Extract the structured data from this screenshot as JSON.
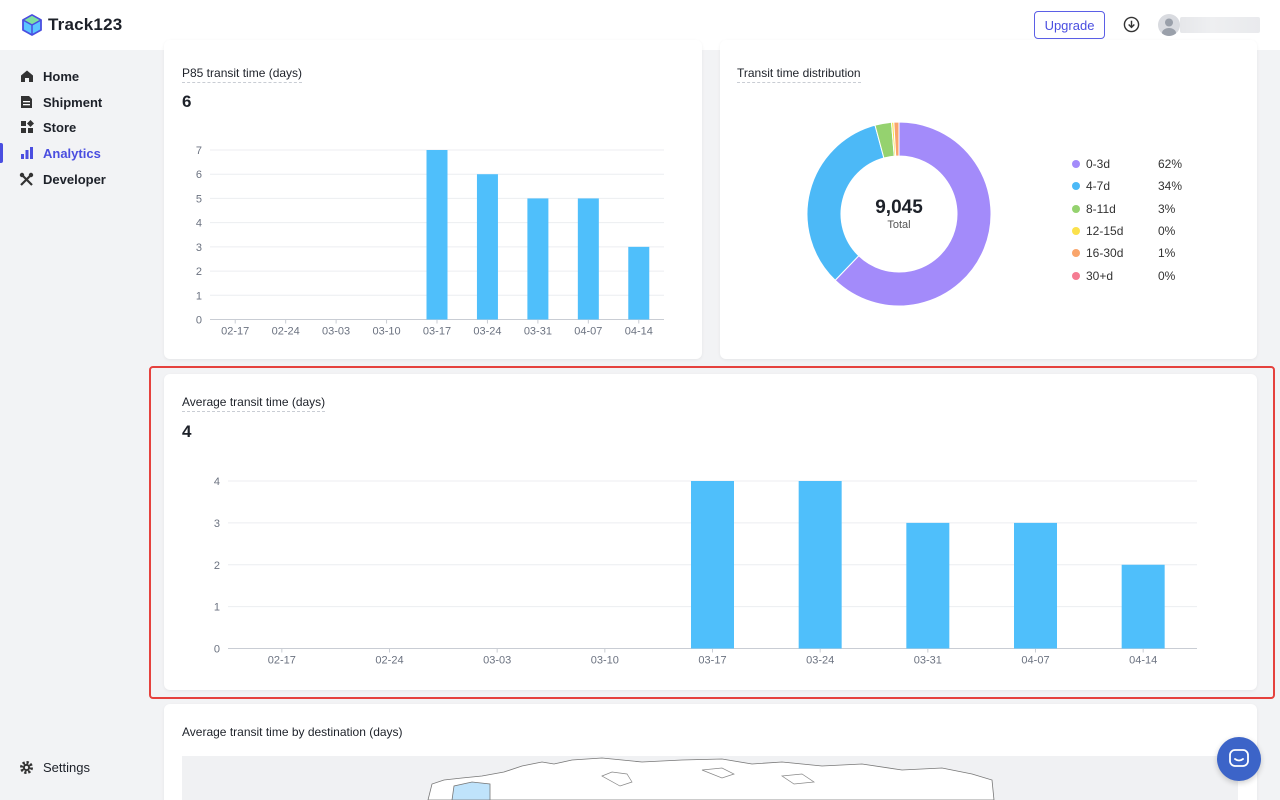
{
  "app": {
    "name": "Track123"
  },
  "header": {
    "upgrade_label": "Upgrade"
  },
  "sidebar": {
    "items": [
      {
        "label": "Home",
        "icon": "home-icon"
      },
      {
        "label": "Shipment",
        "icon": "document-icon"
      },
      {
        "label": "Store",
        "icon": "store-icon"
      },
      {
        "label": "Analytics",
        "icon": "bar-chart-icon",
        "active": true
      },
      {
        "label": "Developer",
        "icon": "tools-icon"
      }
    ],
    "settings_label": "Settings"
  },
  "cards": {
    "p85": {
      "title": "P85 transit time (days)",
      "value": "6"
    },
    "distribution": {
      "title": "Transit time distribution",
      "total_value": "9,045",
      "total_label": "Total"
    },
    "average": {
      "title": "Average transit time (days)",
      "value": "4"
    },
    "destination": {
      "title": "Average transit time by destination (days)"
    }
  },
  "legend": [
    {
      "label": "0-3d",
      "pct": "62%",
      "color": "#a38bfa"
    },
    {
      "label": "4-7d",
      "pct": "34%",
      "color": "#4cb9f7"
    },
    {
      "label": "8-11d",
      "pct": "3%",
      "color": "#95d26f"
    },
    {
      "label": "12-15d",
      "pct": "0%",
      "color": "#fbe14c"
    },
    {
      "label": "16-30d",
      "pct": "1%",
      "color": "#f9a56b"
    },
    {
      "label": "30+d",
      "pct": "0%",
      "color": "#f57c92"
    }
  ],
  "chart_data": [
    {
      "type": "bar",
      "title": "P85 transit time (days)",
      "categories": [
        "02-17",
        "02-24",
        "03-03",
        "03-10",
        "03-17",
        "03-24",
        "03-31",
        "04-07",
        "04-14"
      ],
      "values": [
        0,
        0,
        0,
        0,
        7,
        6,
        5,
        5,
        3
      ],
      "ylim": [
        0,
        7
      ],
      "yticks": [
        0,
        1,
        2,
        3,
        4,
        5,
        6,
        7
      ],
      "color": "#4fbffb"
    },
    {
      "type": "pie",
      "title": "Transit time distribution",
      "categories": [
        "0-3d",
        "4-7d",
        "8-11d",
        "12-15d",
        "16-30d",
        "30+d"
      ],
      "values": [
        62.2,
        33.6,
        2.9,
        0.4,
        0.9,
        0.0
      ],
      "colors": [
        "#a38bfa",
        "#4cb9f7",
        "#95d26f",
        "#fbe14c",
        "#f9a56b",
        "#f57c92"
      ]
    },
    {
      "type": "bar",
      "title": "Average transit time (days)",
      "categories": [
        "02-17",
        "02-24",
        "03-03",
        "03-10",
        "03-17",
        "03-24",
        "03-31",
        "04-07",
        "04-14"
      ],
      "values": [
        0,
        0,
        0,
        0,
        4,
        4,
        3,
        3,
        2
      ],
      "ylim": [
        0,
        4
      ],
      "yticks": [
        0,
        1,
        2,
        3,
        4
      ],
      "color": "#4fbffb"
    }
  ]
}
